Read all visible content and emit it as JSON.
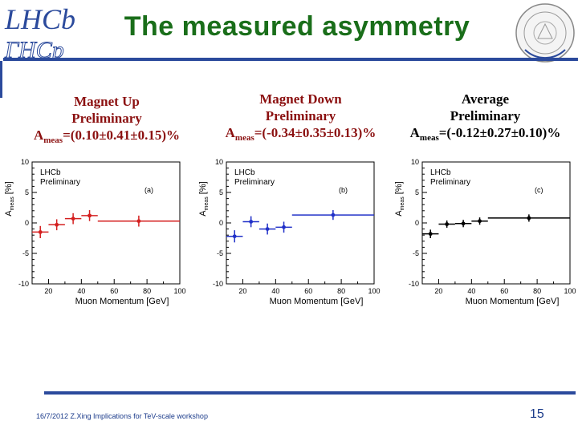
{
  "header": {
    "logo_line1": "LHCb",
    "logo_line2": "ГНСр",
    "title": "The measured asymmetry",
    "seal_name": "university-seal"
  },
  "panels": [
    {
      "line1": "Magnet Up",
      "line2": "Preliminary",
      "a_label": "A",
      "a_sub": "meas",
      "a_value": "=(0.10±0.41±0.15)%"
    },
    {
      "line1": "Magnet Down",
      "line2": "Preliminary",
      "a_label": "A",
      "a_sub": "meas",
      "a_value": "=(-0.34±0.35±0.13)%"
    },
    {
      "line1": "Average",
      "line2": "Preliminary",
      "a_label": "A",
      "a_sub": "meas",
      "a_value": "=(-0.12±0.27±0.10)%"
    }
  ],
  "chart_data": [
    {
      "type": "scatter",
      "tag": "(a)",
      "label1": "LHCb",
      "label2": "Preliminary",
      "color": "#d42020",
      "xlabel": "Muon Momentum [GeV]",
      "ylabel": "A_meas [%]",
      "ylabel_main": "A",
      "ylabel_sub": "meas",
      "ylabel_unit": "[%]",
      "xlim": [
        10,
        100
      ],
      "ylim": [
        -10,
        10
      ],
      "xticks": [
        20,
        40,
        60,
        80,
        100
      ],
      "yticks": [
        -10,
        -5,
        0,
        5,
        10
      ],
      "points": [
        {
          "x": 15,
          "xerr": 5,
          "y": -1.5,
          "yerr": 1.0
        },
        {
          "x": 25,
          "xerr": 5,
          "y": -0.3,
          "yerr": 0.9
        },
        {
          "x": 35,
          "xerr": 5,
          "y": 0.7,
          "yerr": 0.9
        },
        {
          "x": 45,
          "xerr": 5,
          "y": 1.2,
          "yerr": 0.9
        },
        {
          "x": 75,
          "xerr": 25,
          "y": 0.3,
          "yerr": 0.9
        }
      ]
    },
    {
      "type": "scatter",
      "tag": "(b)",
      "label1": "LHCb",
      "label2": "Preliminary",
      "color": "#2030c8",
      "xlabel": "Muon Momentum [GeV]",
      "ylabel": "A_meas [%]",
      "ylabel_main": "A",
      "ylabel_sub": "meas",
      "ylabel_unit": "[%]",
      "xlim": [
        10,
        100
      ],
      "ylim": [
        -10,
        10
      ],
      "xticks": [
        20,
        40,
        60,
        80,
        100
      ],
      "yticks": [
        -10,
        -5,
        0,
        5,
        10
      ],
      "points": [
        {
          "x": 15,
          "xerr": 5,
          "y": -2.2,
          "yerr": 1.0
        },
        {
          "x": 25,
          "xerr": 5,
          "y": 0.2,
          "yerr": 0.9
        },
        {
          "x": 35,
          "xerr": 5,
          "y": -1.0,
          "yerr": 0.9
        },
        {
          "x": 45,
          "xerr": 5,
          "y": -0.7,
          "yerr": 0.9
        },
        {
          "x": 75,
          "xerr": 25,
          "y": 1.3,
          "yerr": 0.8
        }
      ]
    },
    {
      "type": "scatter",
      "tag": "(c)",
      "label1": "LHCb",
      "label2": "Preliminary",
      "color": "#000000",
      "xlabel": "Muon Momentum [GeV]",
      "ylabel": "A_meas [%]",
      "ylabel_main": "A",
      "ylabel_sub": "meas",
      "ylabel_unit": "[%]",
      "xlim": [
        10,
        100
      ],
      "ylim": [
        -10,
        10
      ],
      "xticks": [
        20,
        40,
        60,
        80,
        100
      ],
      "yticks": [
        -10,
        -5,
        0,
        5,
        10
      ],
      "points": [
        {
          "x": 15,
          "xerr": 5,
          "y": -1.8,
          "yerr": 0.7
        },
        {
          "x": 25,
          "xerr": 5,
          "y": -0.2,
          "yerr": 0.6
        },
        {
          "x": 35,
          "xerr": 5,
          "y": -0.1,
          "yerr": 0.6
        },
        {
          "x": 45,
          "xerr": 5,
          "y": 0.3,
          "yerr": 0.6
        },
        {
          "x": 75,
          "xerr": 25,
          "y": 0.8,
          "yerr": 0.6
        }
      ]
    }
  ],
  "footer": {
    "text": "16/7/2012 Z.Xing Implications for TeV-scale workshop",
    "page": "15"
  }
}
